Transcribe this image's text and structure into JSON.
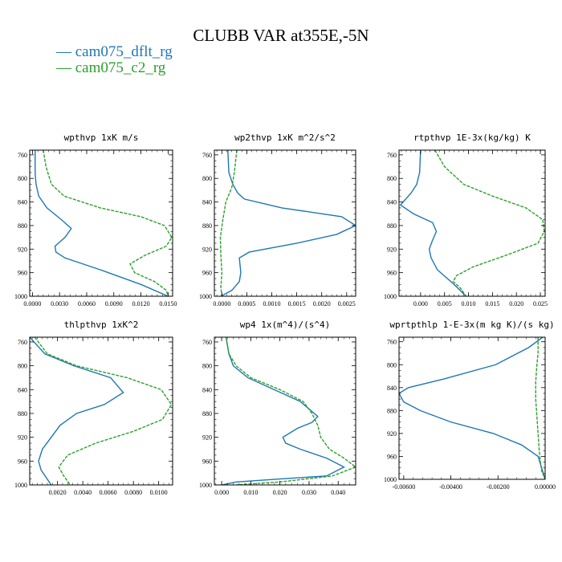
{
  "title": "CLUBB VAR at355E,-5N",
  "legend": [
    {
      "name": "cam075_dflt_rg",
      "color": "#1f77b4"
    },
    {
      "name": "cam075_c2_rg",
      "color": "#2ca02c"
    }
  ],
  "chart_data": [
    {
      "type": "line",
      "title": "wpthvp  1xK m/s",
      "xlim": [
        -0.0003,
        0.0155
      ],
      "ylim": [
        1000,
        752
      ],
      "xticks": [
        "0.0000",
        "0.0030",
        "0.0060",
        "0.0090",
        "0.0120",
        "0.0150"
      ],
      "xtick_values": [
        0.0,
        0.003,
        0.006,
        0.009,
        0.012,
        0.015
      ],
      "yticks": [
        "760",
        "800",
        "840",
        "880",
        "920",
        "960",
        "1000"
      ],
      "ytick_values": [
        760,
        800,
        840,
        880,
        920,
        960,
        1000
      ],
      "series": [
        {
          "name": "cam075_dflt_rg",
          "x": [
            0.0003,
            0.0003,
            0.0004,
            0.0007,
            0.0016,
            0.0032,
            0.0043,
            0.0036,
            0.0025,
            0.0026,
            0.0036,
            0.0075,
            0.012,
            0.015
          ],
          "y": [
            752,
            790,
            810,
            830,
            850,
            870,
            885,
            900,
            915,
            925,
            935,
            955,
            980,
            1000
          ]
        },
        {
          "name": "cam075_c2_rg",
          "x": [
            0.0012,
            0.0015,
            0.0021,
            0.0035,
            0.0075,
            0.012,
            0.0146,
            0.0154,
            0.0148,
            0.0125,
            0.0108,
            0.0113,
            0.0135,
            0.0148,
            0.015
          ],
          "y": [
            752,
            780,
            810,
            830,
            850,
            865,
            880,
            900,
            915,
            930,
            945,
            960,
            975,
            990,
            1000
          ]
        }
      ]
    },
    {
      "type": "line",
      "title": "wp2thvp  1xK m^2/s^2",
      "xlim": [
        -0.00015,
        0.00268
      ],
      "ylim": [
        1000,
        752
      ],
      "xticks": [
        "0.0000",
        "0.0005",
        "0.0010",
        "0.0015",
        "0.0020",
        "0.0025"
      ],
      "xtick_values": [
        0.0,
        0.0005,
        0.001,
        0.0015,
        0.002,
        0.0025
      ],
      "yticks": [
        "760",
        "800",
        "840",
        "880",
        "920",
        "960",
        "1000"
      ],
      "ytick_values": [
        760,
        800,
        840,
        880,
        920,
        960,
        1000
      ],
      "series": [
        {
          "name": "cam075_dflt_rg",
          "x": [
            0.00012,
            0.00014,
            0.00022,
            0.00032,
            0.00045,
            0.0012,
            0.0024,
            0.00268,
            0.0023,
            0.0015,
            0.00055,
            0.00035,
            0.00038,
            0.00035,
            0.0002,
            -2e-05
          ],
          "y": [
            752,
            790,
            810,
            825,
            835,
            850,
            865,
            880,
            895,
            910,
            925,
            935,
            960,
            975,
            990,
            1000
          ]
        },
        {
          "name": "cam075_c2_rg",
          "x": [
            0.0003,
            0.00025,
            0.0002,
            8e-05,
            2e-05,
            -3e-05,
            -2e-05,
            0.0,
            -2e-05,
            0.0
          ],
          "y": [
            752,
            790,
            815,
            840,
            870,
            900,
            930,
            960,
            985,
            1000
          ]
        }
      ]
    },
    {
      "type": "line",
      "title": "rtpthvp  1E-3x(kg/kg) K",
      "xlim": [
        -0.0045,
        0.026
      ],
      "ylim": [
        1000,
        752
      ],
      "xticks": [
        "0.000",
        "0.005",
        "0.010",
        "0.015",
        "0.020",
        "0.025"
      ],
      "xtick_values": [
        0.0,
        0.005,
        0.01,
        0.015,
        0.02,
        0.025
      ],
      "yticks": [
        "760",
        "800",
        "840",
        "880",
        "920",
        "960",
        "1000"
      ],
      "ytick_values": [
        760,
        800,
        840,
        880,
        920,
        960,
        1000
      ],
      "series": [
        {
          "name": "cam075_dflt_rg",
          "x": [
            0.0,
            -0.0002,
            -0.0008,
            -0.002,
            -0.0042,
            -0.0015,
            0.0025,
            0.0033,
            0.0025,
            0.0018,
            0.0022,
            0.0035,
            0.007,
            0.0095
          ],
          "y": [
            752,
            790,
            810,
            825,
            845,
            860,
            875,
            890,
            905,
            920,
            935,
            955,
            980,
            1000
          ]
        },
        {
          "name": "cam075_c2_rg",
          "x": [
            0.003,
            0.005,
            0.009,
            0.015,
            0.022,
            0.0255,
            0.0258,
            0.0245,
            0.018,
            0.011,
            0.0075,
            0.0068,
            0.0082,
            0.0095
          ],
          "y": [
            752,
            780,
            810,
            830,
            850,
            870,
            890,
            910,
            930,
            950,
            965,
            975,
            985,
            1000
          ]
        }
      ]
    },
    {
      "type": "line",
      "title": "thlpthvp  1xK^2",
      "xlim": [
        -0.0002,
        0.0111
      ],
      "ylim": [
        1000,
        752
      ],
      "xticks": [
        "0.0020",
        "0.0040",
        "0.0060",
        "0.0080",
        "0.0100"
      ],
      "xtick_values": [
        0.002,
        0.004,
        0.006,
        0.008,
        0.01
      ],
      "yticks": [
        "760",
        "800",
        "840",
        "880",
        "920",
        "960",
        "1000"
      ],
      "ytick_values": [
        760,
        800,
        840,
        880,
        920,
        960,
        1000
      ],
      "series": [
        {
          "name": "cam075_dflt_rg",
          "x": [
            -0.0002,
            0.001,
            0.0033,
            0.0062,
            0.0072,
            0.0057,
            0.0035,
            0.0022,
            0.0015,
            0.0008,
            0.0005,
            0.0007,
            0.0015
          ],
          "y": [
            752,
            780,
            800,
            820,
            845,
            865,
            880,
            900,
            920,
            940,
            960,
            975,
            1000
          ]
        },
        {
          "name": "cam075_c2_rg",
          "x": [
            0.0002,
            0.0012,
            0.0035,
            0.0075,
            0.0102,
            0.011,
            0.0103,
            0.008,
            0.005,
            0.0028,
            0.0021,
            0.0025,
            0.003
          ],
          "y": [
            752,
            780,
            800,
            820,
            840,
            865,
            890,
            910,
            930,
            950,
            970,
            985,
            1000
          ]
        }
      ]
    },
    {
      "type": "line",
      "title": "wp4  1x(m^4)/(s^4)",
      "xlim": [
        -0.0025,
        0.046
      ],
      "ylim": [
        1000,
        752
      ],
      "xticks": [
        "0.000",
        "0.010",
        "0.020",
        "0.030",
        "0.040"
      ],
      "xtick_values": [
        0.0,
        0.01,
        0.02,
        0.03,
        0.04
      ],
      "yticks": [
        "760",
        "800",
        "840",
        "880",
        "920",
        "960",
        "1000"
      ],
      "ytick_values": [
        760,
        800,
        840,
        880,
        920,
        960,
        1000
      ],
      "series": [
        {
          "name": "cam075_dflt_rg",
          "x": [
            0.0015,
            0.0025,
            0.004,
            0.009,
            0.018,
            0.027,
            0.033,
            0.031,
            0.026,
            0.021,
            0.022,
            0.027,
            0.036,
            0.042,
            0.036,
            0.02,
            0.005,
            0.0
          ],
          "y": [
            752,
            780,
            800,
            820,
            840,
            860,
            885,
            895,
            905,
            920,
            930,
            940,
            955,
            970,
            985,
            990,
            995,
            1000
          ]
        },
        {
          "name": "cam075_c2_rg",
          "x": [
            0.0015,
            0.0025,
            0.005,
            0.01,
            0.02,
            0.028,
            0.031,
            0.033,
            0.034,
            0.037,
            0.042,
            0.046,
            0.038,
            0.02,
            0.005
          ],
          "y": [
            752,
            780,
            800,
            820,
            840,
            860,
            880,
            900,
            920,
            940,
            955,
            970,
            985,
            995,
            1000
          ]
        }
      ]
    },
    {
      "type": "line",
      "title": "wprtpthlp  1-E-3x(m kg K)/(s kg)",
      "xlim": [
        -0.0062,
        0.0
      ],
      "ylim": [
        1000,
        752
      ],
      "xticks": [
        "-0.00600",
        "-0.00400",
        "-0.00200",
        "0.00000"
      ],
      "xtick_values": [
        -0.006,
        -0.004,
        -0.002,
        0.0
      ],
      "yticks": [
        "760",
        "800",
        "840",
        "880",
        "920",
        "960",
        "1000"
      ],
      "ytick_values": [
        760,
        800,
        840,
        880,
        920,
        960,
        1000
      ],
      "series": [
        {
          "name": "cam075_dflt_rg",
          "x": [
            -0.0001,
            -0.0007,
            -0.0021,
            -0.0043,
            -0.0058,
            -0.0062,
            -0.006,
            -0.0053,
            -0.004,
            -0.0022,
            -0.001,
            -0.0003,
            0.0
          ],
          "y": [
            752,
            770,
            800,
            825,
            840,
            850,
            865,
            880,
            900,
            920,
            940,
            960,
            1000
          ]
        },
        {
          "name": "cam075_c2_rg",
          "x": [
            -0.0003,
            -0.0003,
            -0.00035,
            -0.0004,
            -0.0004,
            -0.00035,
            -0.0003,
            -0.00025,
            -0.0002,
            -0.00015,
            0.0
          ],
          "y": [
            752,
            780,
            800,
            830,
            860,
            890,
            920,
            950,
            970,
            985,
            1000
          ]
        }
      ]
    }
  ]
}
